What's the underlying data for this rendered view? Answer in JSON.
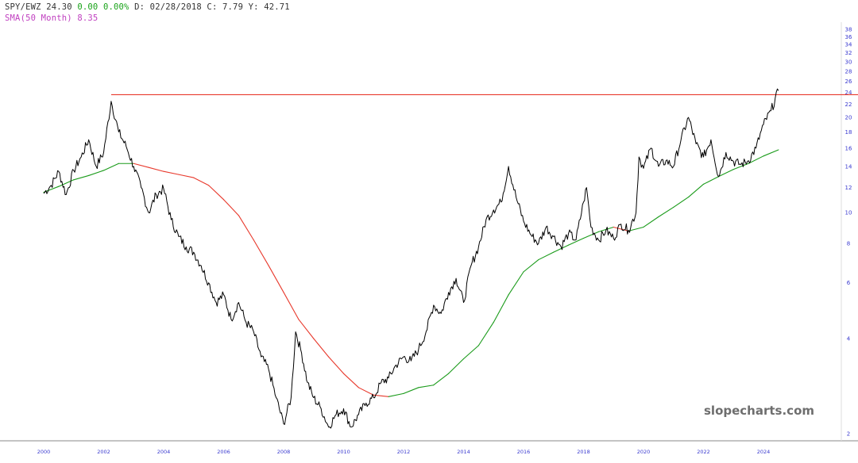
{
  "header": {
    "symbol": "SPY/EWZ",
    "last": "24.30",
    "change": "0.00",
    "change_pct": "0.00%",
    "date_label": "D:",
    "date": "02/28/2018",
    "close_label": "C:",
    "close": "7.79",
    "y_label": "Y:",
    "y_value": "42.71",
    "sma_label": "SMA(50 Month)",
    "sma_value": "8.35"
  },
  "colors": {
    "price": "#000000",
    "sma_up": "#1a9b1a",
    "sma_down": "#e8392c",
    "resistance": "#e8392c",
    "axis_text": "#3a3ad0",
    "change": "#19a319",
    "sma_label": "#c040c0"
  },
  "watermark": "slopecharts.com",
  "chart_data": {
    "type": "line",
    "title": "",
    "xlabel": "",
    "ylabel": "",
    "y_scale": "log",
    "xlim": [
      1999.8,
      2025.5
    ],
    "ylim": [
      1.9,
      40
    ],
    "grid": false,
    "x_ticks": [
      "2000",
      "2002",
      "2004",
      "2006",
      "2008",
      "2010",
      "2012",
      "2014",
      "2016",
      "2018",
      "2020",
      "2022",
      "2024"
    ],
    "y_ticks": [
      "2",
      "4",
      "6",
      "8",
      "10",
      "12",
      "14",
      "16",
      "18",
      "20",
      "22",
      "24",
      "26",
      "28",
      "30",
      "32",
      "34",
      "36",
      "38"
    ],
    "resistance_level": 23.6,
    "resistance_start": 2002.25,
    "series": [
      {
        "name": "SPY/EWZ",
        "points": [
          [
            2000.0,
            11.5
          ],
          [
            2000.25,
            12.2
          ],
          [
            2000.5,
            13.5
          ],
          [
            2000.75,
            11.4
          ],
          [
            2001.0,
            13.6
          ],
          [
            2001.25,
            15.0
          ],
          [
            2001.5,
            17.0
          ],
          [
            2001.75,
            14.0
          ],
          [
            2002.0,
            15.5
          ],
          [
            2002.25,
            22.5
          ],
          [
            2002.5,
            18.0
          ],
          [
            2002.75,
            16.2
          ],
          [
            2003.0,
            14.0
          ],
          [
            2003.25,
            12.0
          ],
          [
            2003.5,
            10.0
          ],
          [
            2003.75,
            11.4
          ],
          [
            2004.0,
            11.9
          ],
          [
            2004.25,
            9.5
          ],
          [
            2004.5,
            8.4
          ],
          [
            2004.75,
            7.8
          ],
          [
            2005.0,
            7.5
          ],
          [
            2005.25,
            6.8
          ],
          [
            2005.5,
            6.0
          ],
          [
            2005.75,
            5.2
          ],
          [
            2006.0,
            5.5
          ],
          [
            2006.25,
            4.6
          ],
          [
            2006.5,
            5.2
          ],
          [
            2006.75,
            4.5
          ],
          [
            2007.0,
            4.2
          ],
          [
            2007.25,
            3.5
          ],
          [
            2007.5,
            3.2
          ],
          [
            2007.75,
            2.6
          ],
          [
            2008.0,
            2.15
          ],
          [
            2008.25,
            2.6
          ],
          [
            2008.4,
            4.2
          ],
          [
            2008.6,
            3.6
          ],
          [
            2008.8,
            2.9
          ],
          [
            2009.0,
            2.6
          ],
          [
            2009.25,
            2.4
          ],
          [
            2009.5,
            2.1
          ],
          [
            2009.75,
            2.3
          ],
          [
            2010.0,
            2.4
          ],
          [
            2010.25,
            2.1
          ],
          [
            2010.5,
            2.3
          ],
          [
            2010.75,
            2.5
          ],
          [
            2011.0,
            2.6
          ],
          [
            2011.25,
            2.9
          ],
          [
            2011.5,
            3.0
          ],
          [
            2011.75,
            3.3
          ],
          [
            2012.0,
            3.5
          ],
          [
            2012.25,
            3.4
          ],
          [
            2012.5,
            3.7
          ],
          [
            2012.75,
            4.2
          ],
          [
            2013.0,
            5.1
          ],
          [
            2013.25,
            4.8
          ],
          [
            2013.5,
            5.6
          ],
          [
            2013.75,
            6.2
          ],
          [
            2014.0,
            5.2
          ],
          [
            2014.25,
            6.8
          ],
          [
            2014.5,
            7.8
          ],
          [
            2014.75,
            9.5
          ],
          [
            2015.0,
            10.2
          ],
          [
            2015.25,
            10.8
          ],
          [
            2015.5,
            14.0
          ],
          [
            2015.75,
            11.2
          ],
          [
            2016.0,
            9.4
          ],
          [
            2016.25,
            8.5
          ],
          [
            2016.5,
            8.0
          ],
          [
            2016.75,
            9.0
          ],
          [
            2017.0,
            8.4
          ],
          [
            2017.25,
            7.8
          ],
          [
            2017.5,
            8.6
          ],
          [
            2017.75,
            8.2
          ],
          [
            2018.0,
            10.8
          ],
          [
            2018.1,
            12.0
          ],
          [
            2018.25,
            9.0
          ],
          [
            2018.5,
            8.2
          ],
          [
            2018.75,
            8.8
          ],
          [
            2019.0,
            8.3
          ],
          [
            2019.25,
            9.2
          ],
          [
            2019.5,
            8.8
          ],
          [
            2019.75,
            10.0
          ],
          [
            2019.85,
            15.0
          ],
          [
            2020.0,
            13.8
          ],
          [
            2020.25,
            16.0
          ],
          [
            2020.5,
            14.0
          ],
          [
            2020.75,
            14.6
          ],
          [
            2021.0,
            14.0
          ],
          [
            2021.25,
            17.0
          ],
          [
            2021.5,
            20.0
          ],
          [
            2021.75,
            16.5
          ],
          [
            2022.0,
            15.0
          ],
          [
            2022.25,
            17.0
          ],
          [
            2022.5,
            13.0
          ],
          [
            2022.75,
            15.5
          ],
          [
            2023.0,
            14.5
          ],
          [
            2023.25,
            14.2
          ],
          [
            2023.5,
            14.6
          ],
          [
            2023.75,
            16.0
          ],
          [
            2024.0,
            19.0
          ],
          [
            2024.25,
            21.0
          ],
          [
            2024.5,
            24.3
          ]
        ]
      },
      {
        "name": "SMA(50 Month)",
        "points": [
          [
            2000.0,
            11.6
          ],
          [
            2000.5,
            12.1
          ],
          [
            2001.0,
            12.7
          ],
          [
            2001.5,
            13.1
          ],
          [
            2002.0,
            13.6
          ],
          [
            2002.5,
            14.3
          ],
          [
            2003.0,
            14.3
          ],
          [
            2003.5,
            13.9
          ],
          [
            2004.0,
            13.5
          ],
          [
            2004.5,
            13.2
          ],
          [
            2005.0,
            12.9
          ],
          [
            2005.5,
            12.2
          ],
          [
            2006.0,
            11.0
          ],
          [
            2006.5,
            9.8
          ],
          [
            2007.0,
            8.2
          ],
          [
            2007.5,
            6.8
          ],
          [
            2008.0,
            5.6
          ],
          [
            2008.5,
            4.6
          ],
          [
            2009.0,
            4.0
          ],
          [
            2009.5,
            3.5
          ],
          [
            2010.0,
            3.1
          ],
          [
            2010.5,
            2.8
          ],
          [
            2011.0,
            2.65
          ],
          [
            2011.5,
            2.62
          ],
          [
            2012.0,
            2.68
          ],
          [
            2012.5,
            2.8
          ],
          [
            2013.0,
            2.85
          ],
          [
            2013.5,
            3.1
          ],
          [
            2014.0,
            3.45
          ],
          [
            2014.5,
            3.8
          ],
          [
            2015.0,
            4.5
          ],
          [
            2015.5,
            5.5
          ],
          [
            2016.0,
            6.5
          ],
          [
            2016.5,
            7.1
          ],
          [
            2017.0,
            7.5
          ],
          [
            2017.5,
            7.9
          ],
          [
            2018.0,
            8.3
          ],
          [
            2018.5,
            8.7
          ],
          [
            2019.0,
            9.0
          ],
          [
            2019.5,
            8.75
          ],
          [
            2020.0,
            9.0
          ],
          [
            2020.5,
            9.7
          ],
          [
            2021.0,
            10.4
          ],
          [
            2021.5,
            11.2
          ],
          [
            2022.0,
            12.3
          ],
          [
            2022.5,
            13.0
          ],
          [
            2023.0,
            13.7
          ],
          [
            2023.5,
            14.3
          ],
          [
            2024.0,
            15.1
          ],
          [
            2024.5,
            15.8
          ]
        ]
      }
    ]
  }
}
